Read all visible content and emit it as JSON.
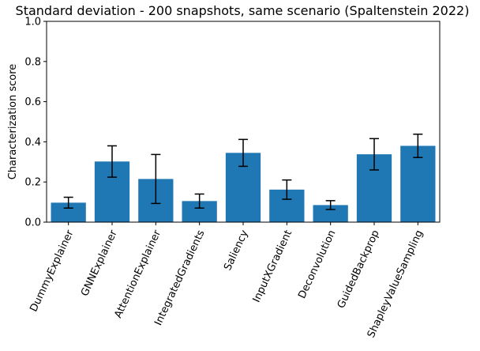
{
  "chart_data": {
    "type": "bar",
    "title": "Standard deviation - 200 snapshots, same scenario (Spaltenstein 2022)",
    "xlabel": "",
    "ylabel": "Characterization score",
    "ylim": [
      0,
      1.0
    ],
    "yticks": [
      "0.0",
      "0.2",
      "0.4",
      "0.6",
      "0.8",
      "1.0"
    ],
    "grid": false,
    "bar_color": "#1f77b4",
    "error_color": "#000000",
    "categories": [
      "DummyExplainer",
      "GNNExplainer",
      "AttentionExplainer",
      "IntegratedGradients",
      "Saliency",
      "InputXGradient",
      "Deconvolution",
      "GuidedBackprop",
      "ShapleyValueSampling"
    ],
    "values": [
      0.097,
      0.302,
      0.215,
      0.105,
      0.345,
      0.162,
      0.085,
      0.338,
      0.38
    ],
    "errors": [
      0.027,
      0.078,
      0.122,
      0.035,
      0.067,
      0.048,
      0.022,
      0.078,
      0.058
    ]
  }
}
